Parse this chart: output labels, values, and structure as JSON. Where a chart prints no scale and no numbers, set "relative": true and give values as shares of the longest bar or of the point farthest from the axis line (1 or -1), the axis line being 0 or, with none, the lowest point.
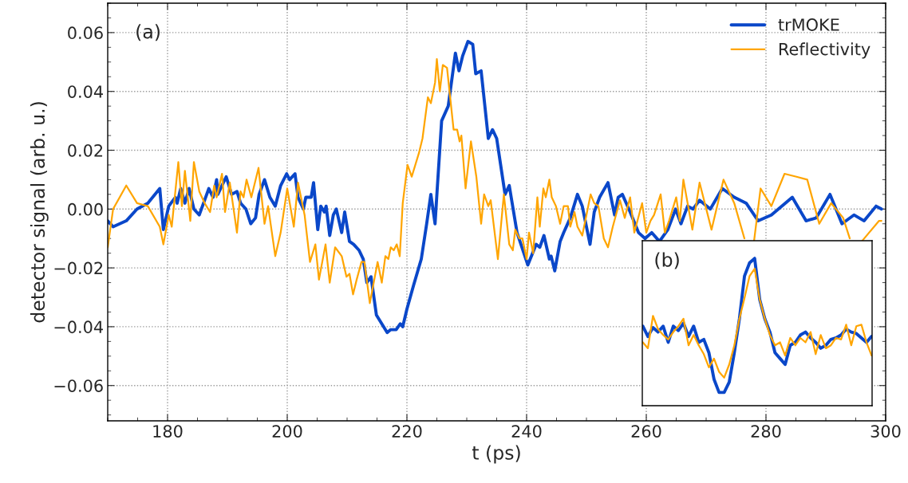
{
  "chart_data": [
    {
      "type": "line",
      "xlabel": "t (ps)",
      "ylabel": "detector signal (arb. u.)",
      "annotations": [
        "(a)"
      ],
      "xlim": [
        170,
        300
      ],
      "ylim": [
        -0.072,
        0.07
      ],
      "xticks": [
        180,
        200,
        220,
        240,
        260,
        280,
        300
      ],
      "yticks": [
        {
          "value": -0.06,
          "label": "−0.06"
        },
        {
          "value": -0.04,
          "label": "−0.04"
        },
        {
          "value": -0.02,
          "label": "−0.02"
        },
        {
          "value": 0,
          "label": "0.00"
        },
        {
          "value": 0.02,
          "label": "0.02"
        },
        {
          "value": 0.04,
          "label": "0.04"
        },
        {
          "value": 0.06,
          "label": "0.06"
        }
      ],
      "grid": true,
      "legend": "top right",
      "line_style": "solid",
      "marker": "none",
      "series": [
        {
          "name": "trMOKE",
          "color": "#0a47c9",
          "x": [
            170,
            170.9,
            173.1,
            174.9,
            176.7,
            178.7,
            179.3,
            180.2,
            181.3,
            181.6,
            182.2,
            182.9,
            183.6,
            184.4,
            185.3,
            186.9,
            187.6,
            188.2,
            188.4,
            189.8,
            190.7,
            191.6,
            192.2,
            193.1,
            193.9,
            194.7,
            195.3,
            196.2,
            197.1,
            198.0,
            198.9,
            199.9,
            200.4,
            201.3,
            201.8,
            202.7,
            203.1,
            204.0,
            204.4,
            205.1,
            205.6,
            206.2,
            206.5,
            207.1,
            207.7,
            208.2,
            209.1,
            209.6,
            210.4,
            211.1,
            212.0,
            212.7,
            213.3,
            214.0,
            214.9,
            215.8,
            216.7,
            217.3,
            218.2,
            218.9,
            219.3,
            220.0,
            221.1,
            222.4,
            223.3,
            224.0,
            224.7,
            225.1,
            225.8,
            226.9,
            228.1,
            228.7,
            229.3,
            230.2,
            231.0,
            231.5,
            232.4,
            233.6,
            234.3,
            235.0,
            236.4,
            237.1,
            238.4,
            240.2,
            241.6,
            242.2,
            242.9,
            243.8,
            244.1,
            244.7,
            245.6,
            246.2,
            247.3,
            248.5,
            249.3,
            250.6,
            251.3,
            252.2,
            253.6,
            254.7,
            255.3,
            256.0,
            257.3,
            258.7,
            259.8,
            260.9,
            262.2,
            263.6,
            264.9,
            265.8,
            266.9,
            267.8,
            268.9,
            270.7,
            272.7,
            274.7,
            276.7,
            278.7,
            280.9,
            284.4,
            286.7,
            288.4,
            290.7,
            292.7,
            294.7,
            296.4,
            298.4,
            299.3
          ],
          "values": [
            -0.004,
            -0.006,
            -0.004,
            0.0,
            0.002,
            0.007,
            -0.007,
            0.001,
            0.004,
            0.002,
            0.007,
            0.002,
            0.007,
            0.0,
            -0.002,
            0.007,
            0.004,
            0.01,
            0.005,
            0.011,
            0.005,
            0.006,
            0.002,
            0.0,
            -0.005,
            -0.003,
            0.005,
            0.01,
            0.004,
            0.001,
            0.008,
            0.012,
            0.01,
            0.012,
            0.004,
            0.0,
            0.004,
            0.004,
            0.009,
            -0.007,
            0.001,
            -0.001,
            0.001,
            -0.009,
            -0.002,
            0.0,
            -0.008,
            -0.001,
            -0.011,
            -0.012,
            -0.014,
            -0.017,
            -0.025,
            -0.023,
            -0.036,
            -0.039,
            -0.042,
            -0.041,
            -0.041,
            -0.039,
            -0.04,
            -0.034,
            -0.026,
            -0.017,
            -0.005,
            0.005,
            -0.005,
            0.008,
            0.03,
            0.035,
            0.053,
            0.047,
            0.052,
            0.057,
            0.056,
            0.046,
            0.047,
            0.024,
            0.027,
            0.024,
            0.005,
            0.008,
            -0.008,
            -0.019,
            -0.012,
            -0.013,
            -0.009,
            -0.017,
            -0.016,
            -0.021,
            -0.011,
            -0.008,
            -0.003,
            0.005,
            0.001,
            -0.012,
            -0.001,
            0.004,
            0.009,
            -0.002,
            0.004,
            0.005,
            -0.001,
            -0.008,
            -0.01,
            -0.008,
            -0.011,
            -0.007,
            0.0,
            -0.005,
            0.001,
            0.0,
            0.003,
            0.0,
            0.007,
            0.004,
            0.002,
            -0.004,
            -0.002,
            0.004,
            -0.004,
            -0.003,
            0.005,
            -0.005,
            -0.002,
            -0.004,
            0.001,
            0.0
          ]
        },
        {
          "name": "Reflectivity",
          "color": "#ffa500",
          "x": [
            170,
            170.9,
            173.1,
            174.9,
            176.7,
            178.7,
            179.3,
            180.2,
            180.7,
            181.8,
            182.4,
            182.9,
            183.8,
            184.4,
            185.3,
            186.2,
            187.1,
            187.8,
            188.2,
            189.1,
            189.6,
            190.4,
            191.6,
            192.2,
            192.7,
            193.2,
            194.0,
            195.2,
            196.2,
            196.8,
            198.0,
            198.9,
            200.0,
            201.1,
            201.8,
            202.9,
            203.8,
            204.7,
            205.3,
            206.4,
            207.1,
            208.0,
            209.1,
            209.9,
            210.4,
            211.0,
            211.6,
            212.4,
            212.9,
            213.8,
            215.1,
            215.8,
            216.4,
            216.9,
            217.3,
            217.8,
            218.3,
            218.8,
            219.3,
            220.1,
            220.8,
            222.0,
            222.6,
            223.5,
            224.0,
            224.7,
            225.0,
            225.5,
            226.0,
            226.7,
            227.8,
            228.4,
            228.8,
            229.1,
            229.8,
            230.7,
            231.6,
            232.4,
            232.9,
            233.6,
            234.0,
            235.2,
            236.2,
            237.1,
            237.7,
            238.1,
            238.8,
            239.3,
            240.0,
            240.4,
            241.1,
            241.8,
            242.2,
            242.8,
            243.2,
            243.8,
            244.2,
            244.9,
            245.6,
            246.2,
            246.9,
            247.3,
            248.0,
            248.5,
            249.3,
            250.7,
            251.3,
            252.0,
            252.9,
            253.6,
            254.4,
            255.6,
            256.4,
            257.3,
            258.0,
            259.3,
            260.0,
            260.7,
            261.3,
            262.4,
            263.1,
            263.8,
            265.0,
            265.6,
            266.2,
            267.7,
            268.9,
            270.9,
            272.9,
            274.7,
            276.4,
            277.2,
            278.0,
            279.1,
            280.9,
            283.1,
            285.1,
            286.9,
            288.9,
            290.9,
            292.9,
            294.0,
            295.0,
            296.0,
            298.9,
            299.3
          ],
          "values": [
            -0.013,
            0.0,
            0.008,
            0.002,
            0.001,
            -0.006,
            -0.012,
            -0.002,
            -0.006,
            0.016,
            0.001,
            0.013,
            -0.004,
            0.016,
            0.006,
            0.002,
            -0.001,
            0.008,
            0.004,
            0.012,
            -0.001,
            0.009,
            -0.008,
            0.006,
            0.004,
            0.01,
            0.004,
            0.014,
            -0.005,
            0.001,
            -0.016,
            -0.008,
            0.007,
            -0.006,
            0.009,
            -0.002,
            -0.018,
            -0.012,
            -0.024,
            -0.012,
            -0.025,
            -0.013,
            -0.016,
            -0.023,
            -0.022,
            -0.029,
            -0.024,
            -0.018,
            -0.018,
            -0.032,
            -0.018,
            -0.025,
            -0.016,
            -0.017,
            -0.013,
            -0.014,
            -0.012,
            -0.016,
            0.002,
            0.015,
            0.011,
            0.019,
            0.024,
            0.038,
            0.036,
            0.043,
            0.051,
            0.04,
            0.049,
            0.048,
            0.027,
            0.027,
            0.023,
            0.025,
            0.007,
            0.023,
            0.011,
            -0.005,
            0.005,
            0.001,
            0.003,
            -0.017,
            0.005,
            -0.012,
            -0.014,
            -0.007,
            -0.01,
            -0.01,
            -0.017,
            -0.008,
            -0.015,
            0.004,
            -0.006,
            0.007,
            0.004,
            0.01,
            0.004,
            0.001,
            -0.005,
            0.001,
            0.001,
            -0.006,
            -0.001,
            -0.006,
            -0.009,
            0.005,
            0.002,
            0.001,
            -0.01,
            -0.013,
            -0.006,
            0.003,
            -0.003,
            0.004,
            -0.008,
            0.002,
            -0.008,
            -0.004,
            -0.002,
            0.005,
            -0.008,
            -0.004,
            0.004,
            -0.004,
            0.01,
            -0.007,
            0.009,
            -0.007,
            0.01,
            0.002,
            -0.01,
            null,
            -0.011,
            0.007,
            0.001,
            0.012,
            0.011,
            0.01,
            -0.005,
            0.002,
            -0.003,
            -0.01,
            null,
            -0.011,
            -0.004,
            -0.004
          ]
        }
      ]
    },
    {
      "type": "line",
      "relative": true,
      "annotations": [
        "(b)"
      ],
      "line_style": "solid",
      "marker": "none",
      "categories": [
        null,
        null,
        null,
        null,
        null,
        null,
        null,
        null,
        null,
        null,
        null,
        null,
        null,
        null,
        null,
        null,
        null,
        null,
        null,
        null,
        null,
        null,
        null,
        null,
        null,
        null,
        null,
        null,
        null,
        null,
        null,
        null,
        null,
        null,
        null,
        null,
        null,
        null,
        null,
        null,
        null,
        null,
        null,
        null,
        null,
        null
      ],
      "series": [
        {
          "color": "#0a47c9",
          "values": [
            0.54,
            0.47,
            0.53,
            0.5,
            0.54,
            0.43,
            0.54,
            0.51,
            0.56,
            0.47,
            0.54,
            0.43,
            0.45,
            0.36,
            0.18,
            0.09,
            0.09,
            0.16,
            0.36,
            0.59,
            0.88,
            0.97,
            1.0,
            0.72,
            0.59,
            0.5,
            0.36,
            0.32,
            0.28,
            0.41,
            0.43,
            0.48,
            0.5,
            0.46,
            0.43,
            0.39,
            0.41,
            0.45,
            0.46,
            0.48,
            0.52,
            0.5,
            0.49,
            0.46,
            0.43,
            0.47
          ]
        },
        {
          "color": "#ffa500",
          "values": [
            0.43,
            0.39,
            0.61,
            0.52,
            0.48,
            0.45,
            0.5,
            0.54,
            0.59,
            0.41,
            0.48,
            0.41,
            0.35,
            0.26,
            0.32,
            0.23,
            0.19,
            0.28,
            0.41,
            0.59,
            0.73,
            0.88,
            0.93,
            0.72,
            0.59,
            0.48,
            0.41,
            0.43,
            0.34,
            0.46,
            0.41,
            0.46,
            0.43,
            0.5,
            0.35,
            0.48,
            0.39,
            0.41,
            0.46,
            0.45,
            0.55,
            0.41,
            0.54,
            0.55,
            0.43,
            0.34
          ]
        }
      ]
    }
  ]
}
